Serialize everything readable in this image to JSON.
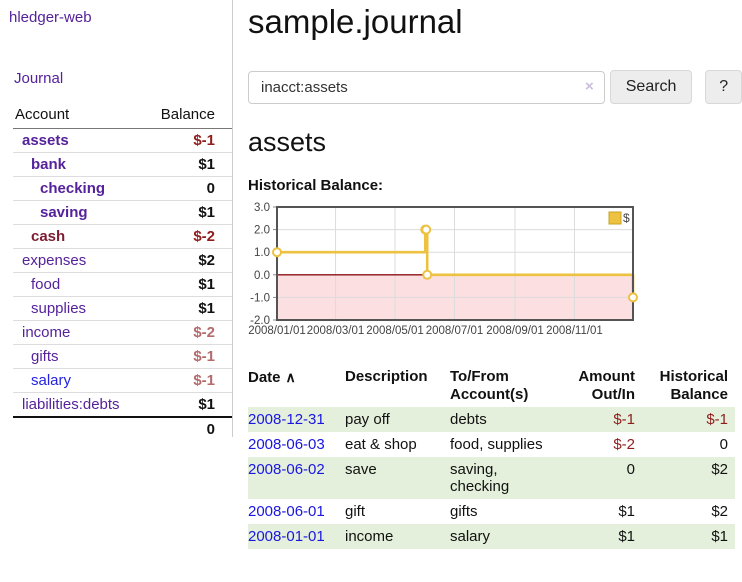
{
  "colors": {
    "link_purple": "#55229b",
    "link_blue": "#2424e0",
    "maroon_account": "#7d1c30",
    "negative_strong": "#8f1d1d",
    "negative_faded": "#b36b6b",
    "row_green": "#e4f0db",
    "chart_gold": "#EDC240",
    "chart_negative_fill": "#fbdfe1",
    "chart_zero_line": "#8b1016",
    "chart_frame": "#545454"
  },
  "sidebar": {
    "brand": "hledger-web",
    "journal_link": "Journal",
    "accounts_table": {
      "account_header": "Account",
      "balance_header": "Balance",
      "rows": [
        {
          "name": "assets",
          "indent": 1,
          "balance": "$-1",
          "strong": true,
          "name_variant": "purple",
          "balance_variant": "dark-red"
        },
        {
          "name": "bank",
          "indent": 2,
          "balance": "$1",
          "strong": true,
          "name_variant": "purple",
          "balance_variant": "black"
        },
        {
          "name": "checking",
          "indent": 3,
          "balance": "0",
          "strong": true,
          "name_variant": "purple",
          "balance_variant": "black"
        },
        {
          "name": "saving",
          "indent": 3,
          "balance": "$1",
          "strong": true,
          "name_variant": "purple",
          "balance_variant": "black"
        },
        {
          "name": "cash",
          "indent": 2,
          "balance": "$-2",
          "strong": true,
          "name_variant": "maroon",
          "balance_variant": "dark-red"
        },
        {
          "name": "expenses",
          "indent": 1,
          "balance": "$2",
          "strong": false,
          "name_variant": "purple",
          "balance_variant": "black"
        },
        {
          "name": "food",
          "indent": 2,
          "balance": "$1",
          "strong": false,
          "name_variant": "purple",
          "balance_variant": "black"
        },
        {
          "name": "supplies",
          "indent": 2,
          "balance": "$1",
          "strong": false,
          "name_variant": "purple",
          "balance_variant": "black"
        },
        {
          "name": "income",
          "indent": 1,
          "balance": "$-2",
          "strong": false,
          "name_variant": "purple",
          "balance_variant": "faded-red"
        },
        {
          "name": "gifts",
          "indent": 2,
          "balance": "$-1",
          "strong": false,
          "name_variant": "purple",
          "balance_variant": "faded-red"
        },
        {
          "name": "salary",
          "indent": 2,
          "balance": "$-1",
          "strong": false,
          "name_variant": "blue",
          "balance_variant": "faded-red"
        },
        {
          "name": "liabilities:debts",
          "indent": 1,
          "balance": "$1",
          "strong": false,
          "name_variant": "purple",
          "balance_variant": "black"
        }
      ],
      "total": "0"
    }
  },
  "header": {
    "title": "sample.journal"
  },
  "search": {
    "query": "inacct:assets",
    "clear_icon": "×",
    "search_label": "Search",
    "help_label": "?"
  },
  "main": {
    "account_heading": "assets",
    "chart_label": "Historical Balance:"
  },
  "chart_data": {
    "type": "line",
    "title": "Historical Balance",
    "step": true,
    "markers": true,
    "grid": true,
    "legend": "$",
    "legend_position": "top-right",
    "xlim_days": [
      0,
      365
    ],
    "ylim": [
      -2,
      3
    ],
    "y_ticks": [
      {
        "v": 3,
        "label": "3.0"
      },
      {
        "v": 2,
        "label": "2.0"
      },
      {
        "v": 1,
        "label": "1.0"
      },
      {
        "v": 0,
        "label": "0.0"
      },
      {
        "v": -1,
        "label": "-1.0"
      },
      {
        "v": -2,
        "label": "-2.0"
      }
    ],
    "x_ticks": [
      {
        "day": 0,
        "label": "2008/01/01"
      },
      {
        "day": 60,
        "label": "2008/03/01"
      },
      {
        "day": 121,
        "label": "2008/05/01"
      },
      {
        "day": 182,
        "label": "2008/07/01"
      },
      {
        "day": 244,
        "label": "2008/09/01"
      },
      {
        "day": 305,
        "label": "2008/11/01"
      }
    ],
    "series": [
      {
        "name": "$",
        "color": "#EDC240",
        "points": [
          {
            "date": "2008-01-01",
            "day": 0,
            "value": 1
          },
          {
            "date": "2008-06-01",
            "day": 152,
            "value": 2
          },
          {
            "date": "2008-06-02",
            "day": 153,
            "value": 2
          },
          {
            "date": "2008-06-03",
            "day": 154,
            "value": 0
          },
          {
            "date": "2008-12-31",
            "day": 365,
            "value": -1
          }
        ]
      }
    ]
  },
  "register": {
    "sort_icon": "∧",
    "columns": [
      {
        "label": "Date"
      },
      {
        "label": "Description"
      },
      {
        "label": "To/From Account(s)"
      },
      {
        "label": "Amount Out/In"
      },
      {
        "label": "Historical Balance"
      }
    ],
    "rows": [
      {
        "date": "2008-12-31",
        "description": "pay off",
        "accounts": [
          "debts"
        ],
        "amount": "$-1",
        "balance": "$-1"
      },
      {
        "date": "2008-06-03",
        "description": "eat & shop",
        "accounts": [
          "food, supplies"
        ],
        "amount": "$-2",
        "balance": "0"
      },
      {
        "date": "2008-06-02",
        "description": "save",
        "accounts": [
          "saving,",
          "checking"
        ],
        "amount": "0",
        "balance": "$2"
      },
      {
        "date": "2008-06-01",
        "description": "gift",
        "accounts": [
          "gifts"
        ],
        "amount": "$1",
        "balance": "$2"
      },
      {
        "date": "2008-01-01",
        "description": "income",
        "accounts": [
          "salary"
        ],
        "amount": "$1",
        "balance": "$1"
      }
    ]
  }
}
